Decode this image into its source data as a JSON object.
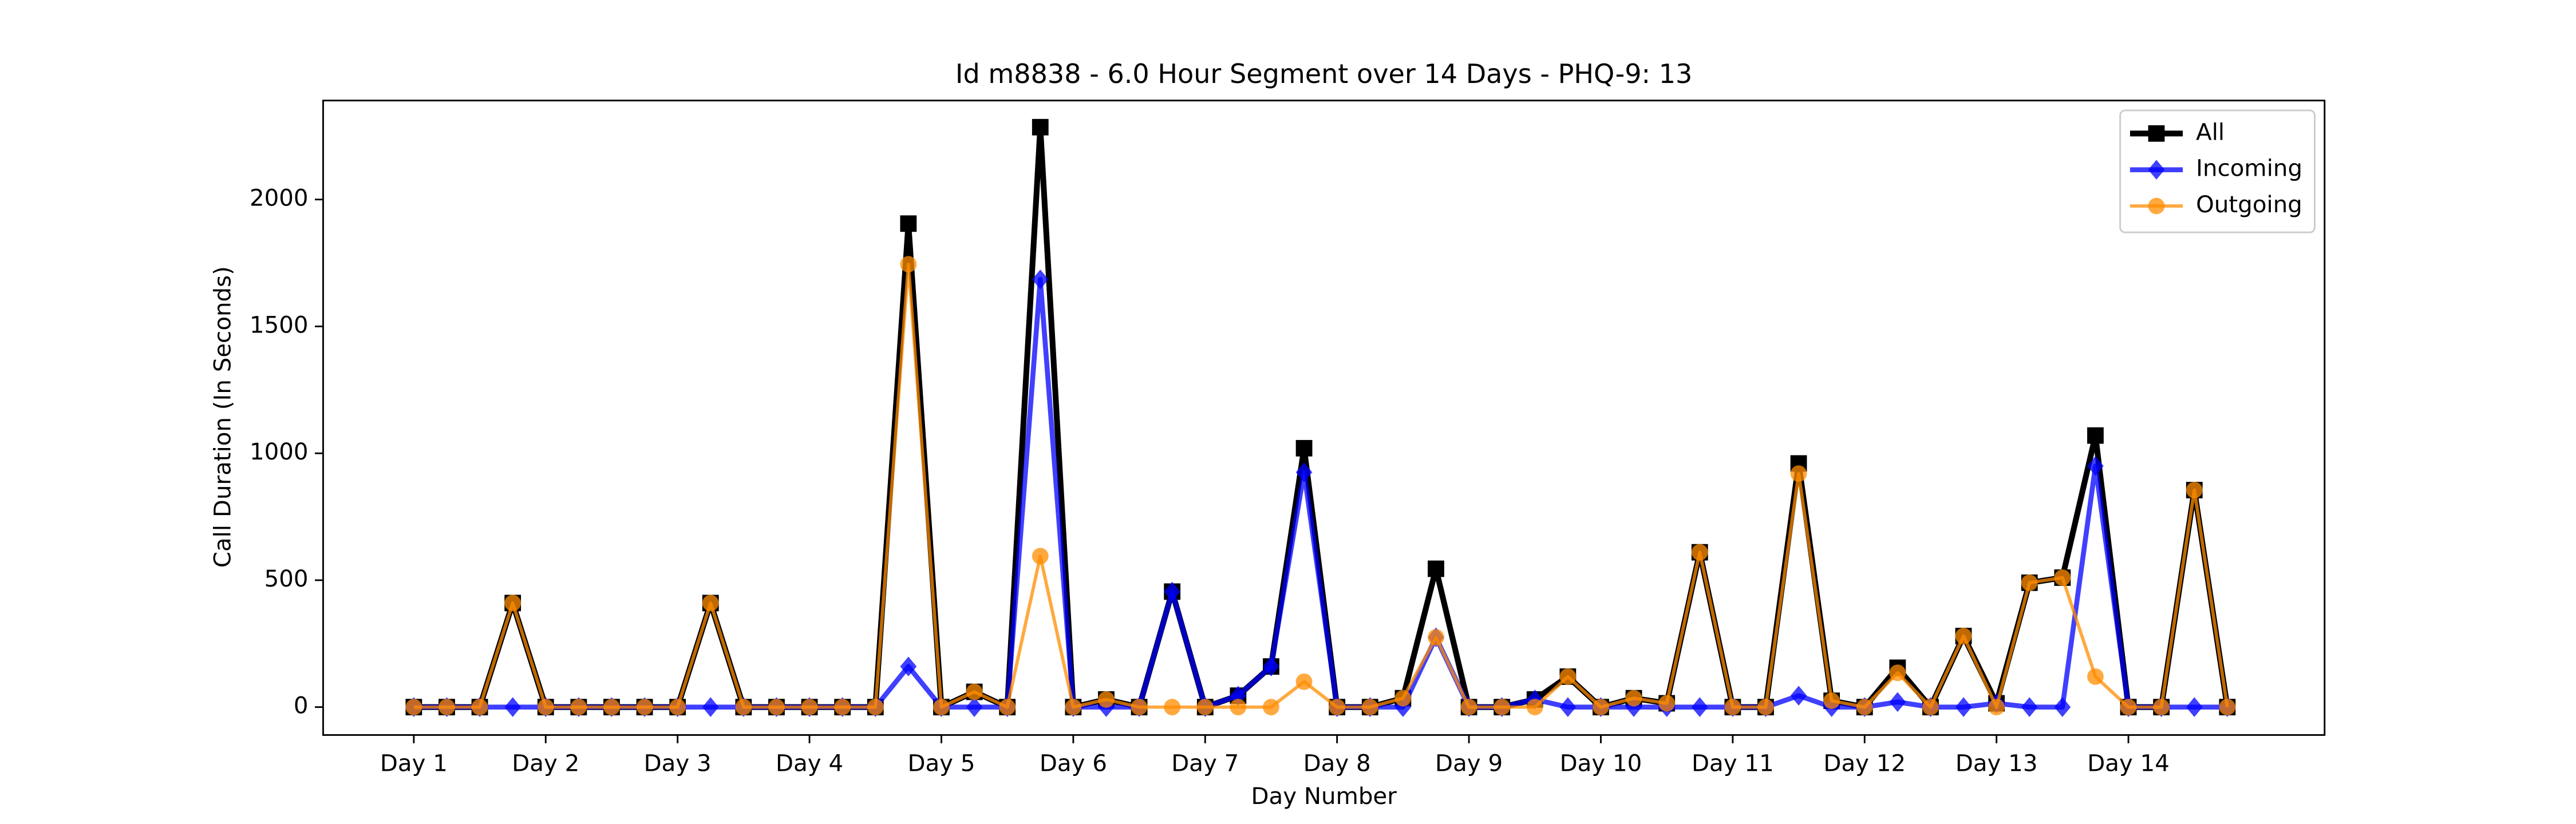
{
  "chart_data": {
    "type": "line",
    "title": "Id m8838 - 6.0 Hour Segment over 14 Days - PHQ-9: 13",
    "xlabel": "Day Number",
    "ylabel": "Call Duration (In Seconds)",
    "x": [
      0,
      1,
      2,
      3,
      4,
      5,
      6,
      7,
      8,
      9,
      10,
      11,
      12,
      13,
      14,
      15,
      16,
      17,
      18,
      19,
      20,
      21,
      22,
      23,
      24,
      25,
      26,
      27,
      28,
      29,
      30,
      31,
      32,
      33,
      34,
      35,
      36,
      37,
      38,
      39,
      40,
      41,
      42,
      43,
      44,
      45,
      46,
      47,
      48,
      49,
      50,
      51,
      52,
      53,
      54,
      55
    ],
    "xlim": [
      -2.75,
      57.95
    ],
    "xticks": [
      {
        "value": 0,
        "label": "Day 1"
      },
      {
        "value": 4,
        "label": "Day 2"
      },
      {
        "value": 8,
        "label": "Day 3"
      },
      {
        "value": 12,
        "label": "Day 4"
      },
      {
        "value": 16,
        "label": "Day 5"
      },
      {
        "value": 20,
        "label": "Day 6"
      },
      {
        "value": 24,
        "label": "Day 7"
      },
      {
        "value": 28,
        "label": "Day 8"
      },
      {
        "value": 32,
        "label": "Day 9"
      },
      {
        "value": 36,
        "label": "Day 10"
      },
      {
        "value": 40,
        "label": "Day 11"
      },
      {
        "value": 44,
        "label": "Day 12"
      },
      {
        "value": 48,
        "label": "Day 13"
      },
      {
        "value": 52,
        "label": "Day 14"
      }
    ],
    "ylim": [
      -110,
      2390
    ],
    "yticks": [
      0,
      500,
      1000,
      1500,
      2000
    ],
    "grid": false,
    "legend": "upper right",
    "series": [
      {
        "name": "All",
        "color": "#000000",
        "marker": "square",
        "values": [
          0,
          0,
          0,
          410,
          0,
          0,
          0,
          0,
          0,
          410,
          0,
          0,
          0,
          0,
          0,
          1905,
          0,
          60,
          0,
          2285,
          0,
          30,
          0,
          455,
          0,
          45,
          160,
          1020,
          0,
          0,
          35,
          545,
          0,
          0,
          30,
          120,
          0,
          35,
          15,
          610,
          0,
          0,
          960,
          25,
          0,
          155,
          0,
          280,
          15,
          490,
          510,
          1070,
          0,
          0,
          855,
          0
        ]
      },
      {
        "name": "Incoming",
        "color": "#0000ff",
        "marker": "diamond",
        "values": [
          0,
          0,
          0,
          0,
          0,
          0,
          0,
          0,
          0,
          0,
          0,
          0,
          0,
          0,
          0,
          160,
          0,
          0,
          0,
          1685,
          0,
          0,
          0,
          455,
          0,
          45,
          160,
          925,
          0,
          0,
          0,
          275,
          0,
          0,
          30,
          0,
          0,
          0,
          0,
          0,
          0,
          0,
          45,
          0,
          0,
          20,
          0,
          0,
          15,
          0,
          0,
          950,
          0,
          0,
          0,
          0
        ]
      },
      {
        "name": "Outgoing",
        "color": "#ff8c00",
        "marker": "circle",
        "values": [
          0,
          0,
          0,
          410,
          0,
          0,
          0,
          0,
          0,
          410,
          0,
          0,
          0,
          0,
          0,
          1745,
          0,
          60,
          0,
          595,
          0,
          30,
          0,
          0,
          0,
          0,
          0,
          100,
          0,
          0,
          35,
          275,
          0,
          0,
          0,
          120,
          0,
          35,
          15,
          610,
          0,
          0,
          920,
          25,
          0,
          135,
          0,
          280,
          0,
          490,
          510,
          120,
          0,
          0,
          855,
          0
        ]
      }
    ]
  }
}
